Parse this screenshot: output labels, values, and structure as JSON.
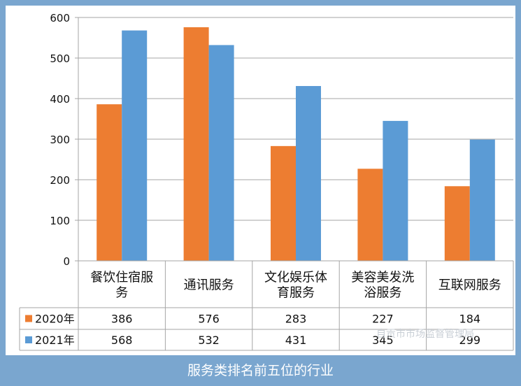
{
  "caption": "服务类排名前五位的行业",
  "watermark": "自贡市市场监督管理局",
  "colors": {
    "series_2020": "#ed7d31",
    "series_2021": "#5b9bd5",
    "frame": "#7aa6cf",
    "grid": "#a6a6a6"
  },
  "chart_data": {
    "type": "bar",
    "title": "",
    "xlabel": "",
    "ylabel": "",
    "ylim": [
      0,
      600
    ],
    "yticks": [
      "0",
      "100",
      "200",
      "300",
      "400",
      "500",
      "600"
    ],
    "grid": true,
    "legend": "data-table-left",
    "categories": [
      [
        "餐饮住宿服",
        "务"
      ],
      [
        "通讯服务"
      ],
      [
        "文化娱乐体",
        "育服务"
      ],
      [
        "美容美发洗",
        "浴服务"
      ],
      [
        "互联网服务"
      ]
    ],
    "series": [
      {
        "name": "2020年",
        "values": [
          386,
          576,
          283,
          227,
          184
        ]
      },
      {
        "name": "2021年",
        "values": [
          568,
          532,
          431,
          345,
          299
        ]
      }
    ],
    "table_values": [
      [
        "386",
        "576",
        "283",
        "227",
        "184"
      ],
      [
        "568",
        "532",
        "431",
        "345",
        "299"
      ]
    ]
  }
}
